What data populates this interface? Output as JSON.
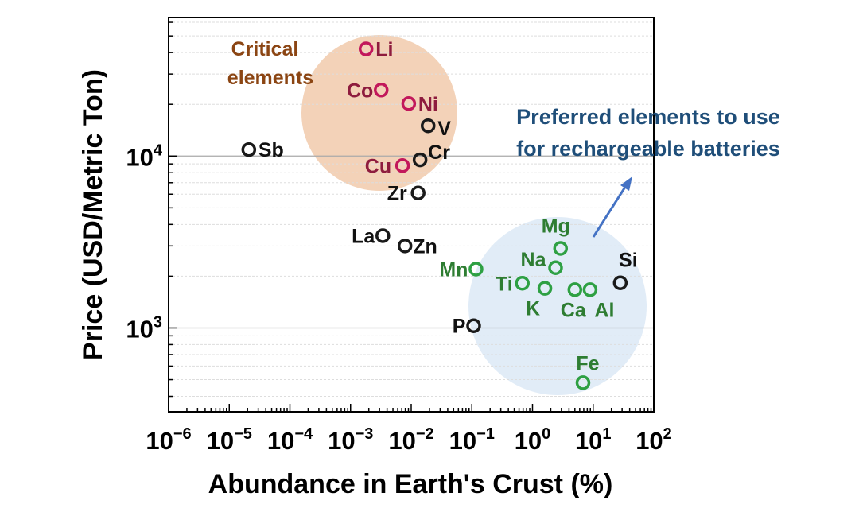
{
  "chart_data": {
    "type": "scatter",
    "xlabel": "Abundance in Earth's Crust (%)",
    "ylabel": "Price (USD/Metric Ton)",
    "xscale": "log",
    "yscale": "log",
    "xlim": [
      1e-06,
      100
    ],
    "ylim": [
      325,
      64000
    ],
    "grid": "horizontal-minor-dashed",
    "x_tick_labels": [
      {
        "base": "10",
        "exp": "−6",
        "value": 1e-06
      },
      {
        "base": "10",
        "exp": "−5",
        "value": 1e-05
      },
      {
        "base": "10",
        "exp": "−4",
        "value": 0.0001
      },
      {
        "base": "10",
        "exp": "−3",
        "value": 0.001
      },
      {
        "base": "10",
        "exp": "−2",
        "value": 0.01
      },
      {
        "base": "10",
        "exp": "−1",
        "value": 0.1
      },
      {
        "base": "10",
        "exp": "0",
        "value": 1
      },
      {
        "base": "10",
        "exp": "1",
        "value": 10
      },
      {
        "base": "10",
        "exp": "2",
        "value": 100
      }
    ],
    "y_tick_labels": [
      {
        "base": "10",
        "exp": "3",
        "value": 1000
      },
      {
        "base": "10",
        "exp": "4",
        "value": 10000
      }
    ],
    "series": [
      {
        "name": "critical",
        "color": "#c2185b",
        "label_color": "#8e1c3e",
        "points": [
          {
            "label": "Li",
            "x": 0.0018,
            "y": 42000
          },
          {
            "label": "Co",
            "x": 0.0032,
            "y": 24200
          },
          {
            "label": "Ni",
            "x": 0.0091,
            "y": 20200
          },
          {
            "label": "Cu",
            "x": 0.0072,
            "y": 8800
          }
        ]
      },
      {
        "name": "other",
        "color": "#1a1a1a",
        "label_color": "#111111",
        "points": [
          {
            "label": "V",
            "x": 0.019,
            "y": 15000
          },
          {
            "label": "Cr",
            "x": 0.014,
            "y": 9500
          },
          {
            "label": "Zr",
            "x": 0.013,
            "y": 6100
          },
          {
            "label": "Sb",
            "x": 2.1e-05,
            "y": 10900
          },
          {
            "label": "La",
            "x": 0.0034,
            "y": 3440
          },
          {
            "label": "Zn",
            "x": 0.0079,
            "y": 3000
          },
          {
            "label": "Si",
            "x": 28,
            "y": 1830
          },
          {
            "label": "P",
            "x": 0.107,
            "y": 1030
          }
        ]
      },
      {
        "name": "preferred",
        "color": "#2ea043",
        "label_color": "#2e7d32",
        "points": [
          {
            "label": "Mn",
            "x": 0.117,
            "y": 2200
          },
          {
            "label": "Mg",
            "x": 2.9,
            "y": 2900
          },
          {
            "label": "Na",
            "x": 2.4,
            "y": 2240
          },
          {
            "label": "Ti",
            "x": 0.68,
            "y": 1820
          },
          {
            "label": "K",
            "x": 1.6,
            "y": 1700
          },
          {
            "label": "Ca",
            "x": 5.0,
            "y": 1670
          },
          {
            "label": "Al",
            "x": 8.9,
            "y": 1670
          },
          {
            "label": "Fe",
            "x": 6.8,
            "y": 480
          }
        ]
      }
    ],
    "annotations": {
      "critical_line1": "Critical",
      "critical_line2": "elements",
      "preferred_line1": "Preferred elements to use",
      "preferred_line2": "for rechargeable batteries"
    },
    "colors": {
      "critical_region": "#f2cdb0",
      "preferred_region": "#deeaf6",
      "critical_text": "#8b4513",
      "preferred_text": "#1f4e79",
      "arrow": "#4472c4"
    }
  }
}
